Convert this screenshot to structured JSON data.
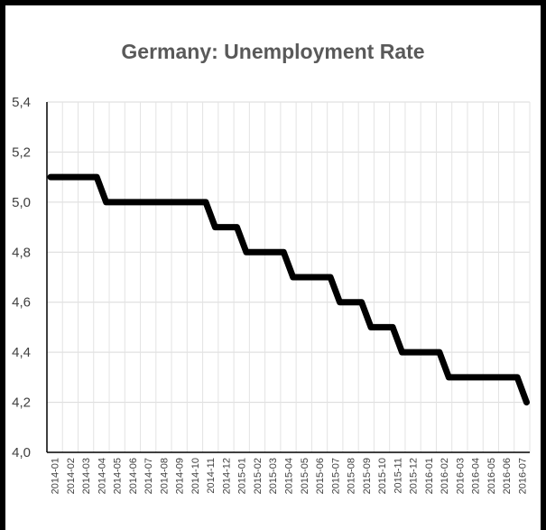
{
  "chart_data": {
    "type": "line",
    "title": "Germany: Unemployment Rate",
    "xlabel": "",
    "ylabel": "",
    "ylim": [
      4.0,
      5.4
    ],
    "yticks": [
      "4,0",
      "4,2",
      "4,4",
      "4,6",
      "4,8",
      "5,0",
      "5,2",
      "5,4"
    ],
    "categories": [
      "2014-01",
      "2014-02",
      "2014-03",
      "2014-04",
      "2014-05",
      "2014-06",
      "2014-07",
      "2014-08",
      "2014-09",
      "2014-10",
      "2014-11",
      "2014-12",
      "2015-01",
      "2015-02",
      "2015-03",
      "2015-04",
      "2015-05",
      "2015-06",
      "2015-07",
      "2015-08",
      "2015-09",
      "2015-10",
      "2015-11",
      "2015-12",
      "2016-01",
      "2016-02",
      "2016-03",
      "2016-04",
      "2016-05",
      "2016-06",
      "2016-07"
    ],
    "values": [
      5.1,
      5.1,
      5.1,
      5.0,
      5.0,
      5.0,
      5.0,
      5.0,
      5.0,
      5.0,
      4.9,
      4.9,
      4.8,
      4.8,
      4.8,
      4.7,
      4.7,
      4.7,
      4.6,
      4.6,
      4.5,
      4.5,
      4.4,
      4.4,
      4.4,
      4.3,
      4.3,
      4.3,
      4.3,
      4.3,
      4.2
    ],
    "grid": true,
    "line_color": "#000000"
  }
}
